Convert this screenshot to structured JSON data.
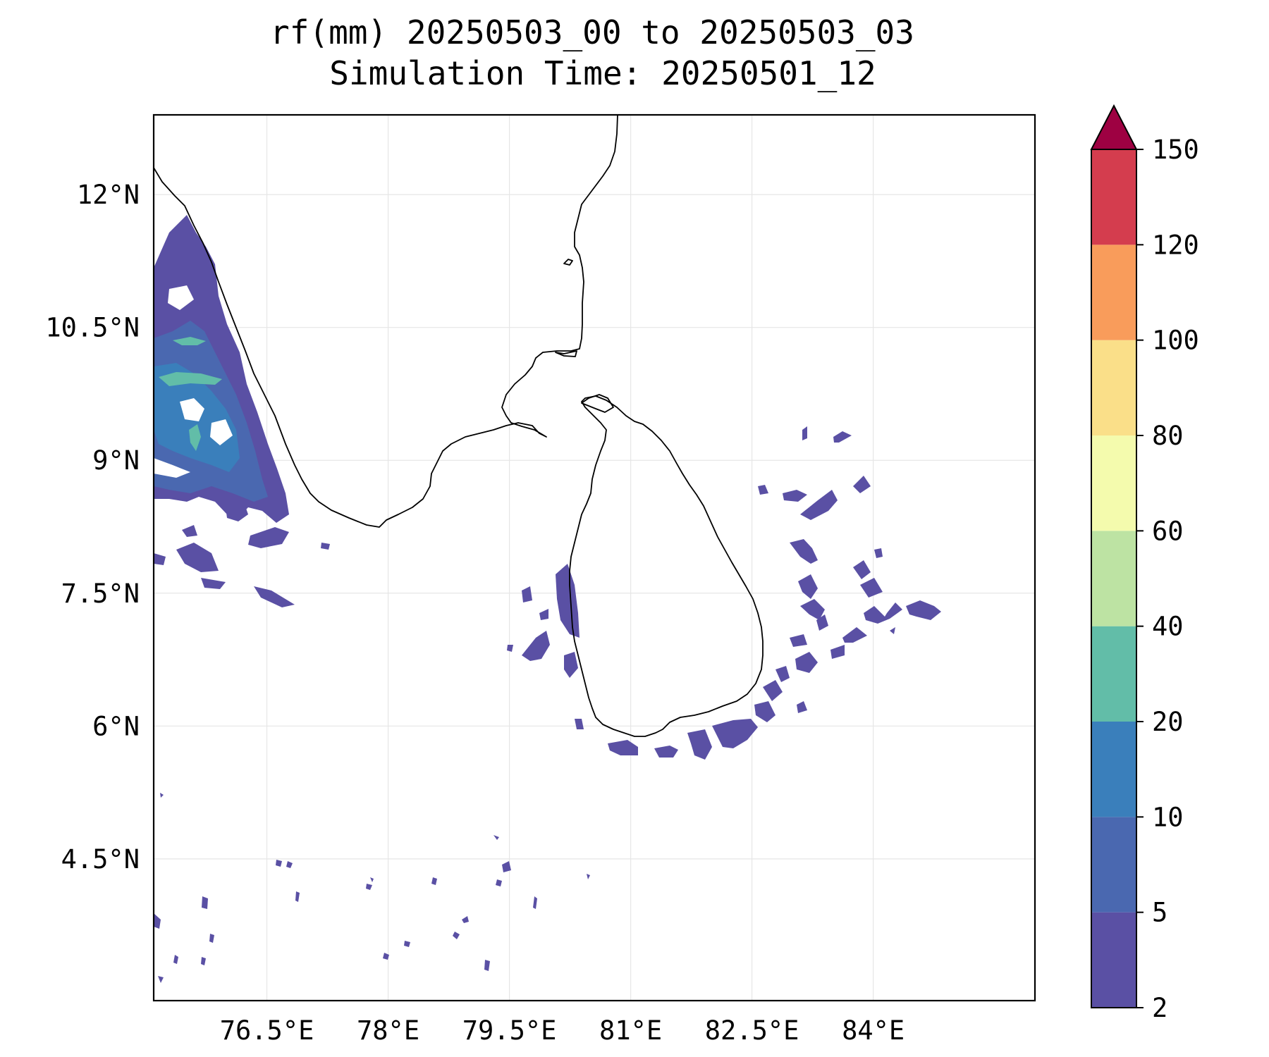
{
  "title": {
    "line1": "rf(mm) 20250503_00 to 20250503_03",
    "line2": "Simulation Time: 20250501_12"
  },
  "map": {
    "lon_range": [
      75.1,
      86.0
    ],
    "lat_range": [
      2.9,
      12.9
    ],
    "x_ticks": [
      {
        "value": 76.5,
        "label": "76.5°E"
      },
      {
        "value": 78.0,
        "label": "78°E"
      },
      {
        "value": 79.5,
        "label": "79.5°E"
      },
      {
        "value": 81.0,
        "label": "81°E"
      },
      {
        "value": 82.5,
        "label": "82.5°E"
      },
      {
        "value": 84.0,
        "label": "84°E"
      }
    ],
    "y_ticks": [
      {
        "value": 12.0,
        "label": "12°N"
      },
      {
        "value": 10.5,
        "label": "10.5°N"
      },
      {
        "value": 9.0,
        "label": "9°N"
      },
      {
        "value": 7.5,
        "label": "7.5°N"
      },
      {
        "value": 6.0,
        "label": "6°N"
      },
      {
        "value": 4.5,
        "label": "4.5°N"
      }
    ],
    "gridlines": true,
    "variable": "rainfall (mm)"
  },
  "colorbar": {
    "levels": [
      "2",
      "5",
      "10",
      "20",
      "40",
      "60",
      "80",
      "100",
      "120",
      "150"
    ],
    "colors": [
      "#5a50a4",
      "#4a68b0",
      "#3a7fbb",
      "#62bda8",
      "#bde3a3",
      "#f4fbad",
      "#fadf89",
      "#f99c5b",
      "#d43d4e"
    ],
    "extend_color": "#9e0142",
    "extend": "max"
  },
  "rain_regions": [
    {
      "region": "southwest India coast (Kerala offshore)",
      "level": "2-10 mm, patches 10-40 mm"
    },
    {
      "region": "west of Sri Lanka",
      "level": "2-10 mm"
    },
    {
      "region": "south and east of Sri Lanka",
      "level": "2-10 mm"
    },
    {
      "region": "scattered south of 4.5°N",
      "level": "2-5 mm"
    }
  ]
}
